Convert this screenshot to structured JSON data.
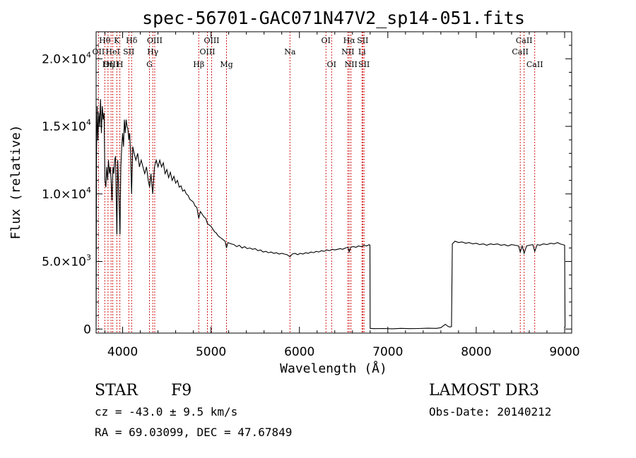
{
  "chart_data": {
    "type": "line",
    "title": "spec-56701-GAC071N47V2_sp14-051.fits",
    "xlabel": "Wavelength (Å)",
    "ylabel": "Flux (relative)",
    "xlim": [
      3700,
      9080
    ],
    "ylim": [
      -300,
      22000
    ],
    "xticks": [
      4000,
      5000,
      6000,
      7000,
      8000,
      9000
    ],
    "xtick_labels": [
      "4000",
      "5000",
      "6000",
      "7000",
      "8000",
      "9000"
    ],
    "yticks": [
      {
        "value": 0,
        "mantissa": "0",
        "exp": ""
      },
      {
        "value": 5000,
        "mantissa": "5.0×10",
        "exp": "3"
      },
      {
        "value": 10000,
        "mantissa": "1.0×10",
        "exp": "4"
      },
      {
        "value": 15000,
        "mantissa": "1.5×10",
        "exp": "4"
      },
      {
        "value": 20000,
        "mantissa": "2.0×10",
        "exp": "4"
      }
    ],
    "series": [
      {
        "name": "flux",
        "points": [
          [
            3700,
            200
          ],
          [
            3705,
            13000
          ],
          [
            3712,
            16500
          ],
          [
            3720,
            14000
          ],
          [
            3730,
            16000
          ],
          [
            3740,
            15000
          ],
          [
            3750,
            17000
          ],
          [
            3760,
            14500
          ],
          [
            3770,
            16500
          ],
          [
            3780,
            15500
          ],
          [
            3790,
            16000
          ],
          [
            3800,
            11000
          ],
          [
            3810,
            10500
          ],
          [
            3820,
            12000
          ],
          [
            3830,
            11000
          ],
          [
            3840,
            12500
          ],
          [
            3850,
            11500
          ],
          [
            3860,
            12000
          ],
          [
            3870,
            11000
          ],
          [
            3880,
            9500
          ],
          [
            3890,
            12000
          ],
          [
            3900,
            11500
          ],
          [
            3910,
            12500
          ],
          [
            3920,
            12800
          ],
          [
            3935,
            7000
          ],
          [
            3945,
            12500
          ],
          [
            3960,
            9500
          ],
          [
            3970,
            7000
          ],
          [
            3980,
            12000
          ],
          [
            3990,
            13500
          ],
          [
            4000,
            14500
          ],
          [
            4010,
            13500
          ],
          [
            4020,
            15500
          ],
          [
            4030,
            14500
          ],
          [
            4040,
            15500
          ],
          [
            4050,
            15000
          ],
          [
            4060,
            14800
          ],
          [
            4070,
            14000
          ],
          [
            4080,
            14500
          ],
          [
            4090,
            13000
          ],
          [
            4101,
            10000
          ],
          [
            4115,
            13500
          ],
          [
            4130,
            13000
          ],
          [
            4150,
            12500
          ],
          [
            4170,
            13000
          ],
          [
            4190,
            12000
          ],
          [
            4210,
            12500
          ],
          [
            4230,
            12000
          ],
          [
            4250,
            11500
          ],
          [
            4270,
            12000
          ],
          [
            4290,
            11000
          ],
          [
            4305,
            10500
          ],
          [
            4320,
            11500
          ],
          [
            4340,
            10000
          ],
          [
            4360,
            12000
          ],
          [
            4380,
            12500
          ],
          [
            4400,
            12000
          ],
          [
            4420,
            12500
          ],
          [
            4440,
            12000
          ],
          [
            4460,
            12300
          ],
          [
            4480,
            11500
          ],
          [
            4500,
            11800
          ],
          [
            4520,
            11200
          ],
          [
            4540,
            11600
          ],
          [
            4560,
            11000
          ],
          [
            4580,
            11300
          ],
          [
            4600,
            10800
          ],
          [
            4620,
            11000
          ],
          [
            4640,
            10500
          ],
          [
            4660,
            10600
          ],
          [
            4680,
            10200
          ],
          [
            4700,
            10300
          ],
          [
            4720,
            10000
          ],
          [
            4740,
            9900
          ],
          [
            4760,
            9600
          ],
          [
            4780,
            9500
          ],
          [
            4800,
            9400
          ],
          [
            4820,
            9100
          ],
          [
            4840,
            9000
          ],
          [
            4861,
            8200
          ],
          [
            4880,
            8700
          ],
          [
            4900,
            8500
          ],
          [
            4920,
            8300
          ],
          [
            4940,
            8200
          ],
          [
            4960,
            7800
          ],
          [
            4980,
            7700
          ],
          [
            5000,
            7600
          ],
          [
            5020,
            7400
          ],
          [
            5040,
            7200
          ],
          [
            5060,
            7100
          ],
          [
            5080,
            6900
          ],
          [
            5100,
            6800
          ],
          [
            5120,
            6700
          ],
          [
            5140,
            6600
          ],
          [
            5160,
            6500
          ],
          [
            5175,
            6000
          ],
          [
            5190,
            6400
          ],
          [
            5210,
            6350
          ],
          [
            5230,
            6300
          ],
          [
            5260,
            6250
          ],
          [
            5290,
            6100
          ],
          [
            5320,
            6200
          ],
          [
            5350,
            6000
          ],
          [
            5380,
            6100
          ],
          [
            5410,
            5950
          ],
          [
            5440,
            6000
          ],
          [
            5470,
            5900
          ],
          [
            5500,
            5950
          ],
          [
            5530,
            5800
          ],
          [
            5560,
            5850
          ],
          [
            5590,
            5700
          ],
          [
            5620,
            5750
          ],
          [
            5650,
            5650
          ],
          [
            5680,
            5700
          ],
          [
            5710,
            5600
          ],
          [
            5740,
            5650
          ],
          [
            5770,
            5550
          ],
          [
            5800,
            5600
          ],
          [
            5830,
            5550
          ],
          [
            5860,
            5500
          ],
          [
            5893,
            5350
          ],
          [
            5920,
            5550
          ],
          [
            5950,
            5600
          ],
          [
            5980,
            5500
          ],
          [
            6010,
            5600
          ],
          [
            6040,
            5550
          ],
          [
            6070,
            5650
          ],
          [
            6100,
            5600
          ],
          [
            6130,
            5700
          ],
          [
            6160,
            5650
          ],
          [
            6190,
            5750
          ],
          [
            6220,
            5700
          ],
          [
            6250,
            5800
          ],
          [
            6280,
            5750
          ],
          [
            6310,
            5850
          ],
          [
            6340,
            5800
          ],
          [
            6370,
            5900
          ],
          [
            6400,
            5850
          ],
          [
            6430,
            5900
          ],
          [
            6460,
            5950
          ],
          [
            6490,
            5900
          ],
          [
            6520,
            6000
          ],
          [
            6550,
            6050
          ],
          [
            6563,
            5700
          ],
          [
            6580,
            6050
          ],
          [
            6610,
            6100
          ],
          [
            6640,
            6050
          ],
          [
            6670,
            6150
          ],
          [
            6700,
            6100
          ],
          [
            6730,
            6200
          ],
          [
            6760,
            6150
          ],
          [
            6790,
            6250
          ],
          [
            6798,
            6200
          ],
          [
            6800,
            50
          ],
          [
            6850,
            30
          ],
          [
            6950,
            40
          ],
          [
            7050,
            20
          ],
          [
            7150,
            50
          ],
          [
            7250,
            30
          ],
          [
            7350,
            40
          ],
          [
            7450,
            60
          ],
          [
            7550,
            50
          ],
          [
            7600,
            100
          ],
          [
            7650,
            350
          ],
          [
            7680,
            200
          ],
          [
            7700,
            150
          ],
          [
            7720,
            180
          ],
          [
            7730,
            6300
          ],
          [
            7760,
            6500
          ],
          [
            7800,
            6400
          ],
          [
            7840,
            6450
          ],
          [
            7880,
            6350
          ],
          [
            7920,
            6400
          ],
          [
            7960,
            6300
          ],
          [
            8000,
            6350
          ],
          [
            8040,
            6250
          ],
          [
            8080,
            6300
          ],
          [
            8120,
            6200
          ],
          [
            8160,
            6300
          ],
          [
            8200,
            6250
          ],
          [
            8240,
            6300
          ],
          [
            8280,
            6200
          ],
          [
            8320,
            6250
          ],
          [
            8360,
            6150
          ],
          [
            8400,
            6250
          ],
          [
            8440,
            6200
          ],
          [
            8480,
            6150
          ],
          [
            8498,
            5700
          ],
          [
            8520,
            6150
          ],
          [
            8542,
            5600
          ],
          [
            8570,
            6150
          ],
          [
            8600,
            6200
          ],
          [
            8640,
            6250
          ],
          [
            8662,
            5750
          ],
          [
            8690,
            6250
          ],
          [
            8720,
            6200
          ],
          [
            8760,
            6300
          ],
          [
            8800,
            6250
          ],
          [
            8840,
            6350
          ],
          [
            8880,
            6300
          ],
          [
            8920,
            6400
          ],
          [
            8950,
            6300
          ],
          [
            8980,
            6250
          ],
          [
            9000,
            6200
          ],
          [
            9005,
            100
          ]
        ]
      }
    ],
    "spectral_lines": [
      {
        "name": "Hθ",
        "wavelength": 3798,
        "row": 1
      },
      {
        "name": "OII",
        "wavelength": 3727,
        "row": 2
      },
      {
        "name": "OIII",
        "wavelength": 3869,
        "row": 3
      },
      {
        "name": "Hη",
        "wavelength": 3835,
        "row": 3
      },
      {
        "name": "HeI",
        "wavelength": 3889,
        "row": 2
      },
      {
        "name": "K",
        "wavelength": 3934,
        "row": 1
      },
      {
        "name": "SII",
        "wavelength": 4070,
        "row": 2
      },
      {
        "name": "H",
        "wavelength": 3969,
        "row": 3
      },
      {
        "name": "Hδ",
        "wavelength": 4102,
        "row": 1
      },
      {
        "name": "OIII",
        "wavelength": 4363,
        "row": 1
      },
      {
        "name": "Hγ",
        "wavelength": 4341,
        "row": 2
      },
      {
        "name": "G",
        "wavelength": 4304,
        "row": 3
      },
      {
        "name": "Hβ",
        "wavelength": 4861,
        "row": 3
      },
      {
        "name": "OIII",
        "wavelength": 4959,
        "row": 2
      },
      {
        "name": "OIII",
        "wavelength": 5007,
        "row": 1
      },
      {
        "name": "Mg",
        "wavelength": 5175,
        "row": 3
      },
      {
        "name": "Na",
        "wavelength": 5893,
        "row": 2
      },
      {
        "name": "OI",
        "wavelength": 6300,
        "row": 1
      },
      {
        "name": "OI",
        "wavelength": 6364,
        "row": 3
      },
      {
        "name": "NII",
        "wavelength": 6548,
        "row": 2
      },
      {
        "name": "NII",
        "wavelength": 6583,
        "row": 3
      },
      {
        "name": "Hα",
        "wavelength": 6563,
        "row": 1
      },
      {
        "name": "SII",
        "wavelength": 6716,
        "row": 1
      },
      {
        "name": "SII",
        "wavelength": 6731,
        "row": 3
      },
      {
        "name": "Li",
        "wavelength": 6708,
        "row": 2
      },
      {
        "name": "CaII",
        "wavelength": 8498,
        "row": 2
      },
      {
        "name": "CaII",
        "wavelength": 8542,
        "row": 1
      },
      {
        "name": "CaII",
        "wavelength": 8662,
        "row": 3
      }
    ]
  },
  "info": {
    "object_class": "STAR",
    "subclass": "F9",
    "survey": "LAMOST DR3",
    "redshift": "cz = -43.0 ± 9.5 km/s",
    "obs_date": "Obs-Date: 20140212",
    "coords": "RA =  69.03099, DEC =  47.67849"
  },
  "colors": {
    "line_marker": "#cc0000",
    "spectrum": "#000000"
  }
}
